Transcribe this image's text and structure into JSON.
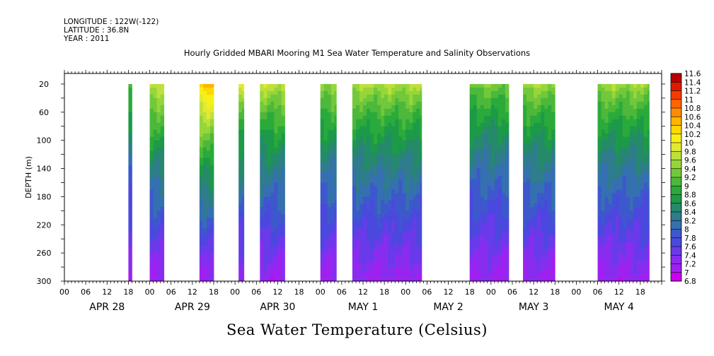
{
  "header": {
    "longitude": "LONGITUDE : 122W(-122)",
    "latitude": "LATITUDE : 36.8N",
    "year": "YEAR : 2011"
  },
  "title": "Hourly Gridded MBARI Mooring M1 Sea Water Temperature and Salinity Observations",
  "variable_label": "Sea Water Temperature (Celsius)",
  "chart_data": {
    "type": "heatmap",
    "title": "Hourly Gridded MBARI Mooring M1 Sea Water Temperature and Salinity Observations",
    "xlabel": "",
    "ylabel": "DEPTH (m)",
    "colorbar_label": "Sea Water Temperature (Celsius)",
    "x_unit": "hours since Apr 28 2011 00:00",
    "xlim": [
      0,
      168
    ],
    "ylim": [
      300,
      5
    ],
    "y_ticks": [
      20,
      60,
      100,
      140,
      180,
      220,
      260,
      300
    ],
    "x_hour_ticks": [
      "00",
      "06",
      "12",
      "18",
      "00",
      "06",
      "12",
      "18",
      "00",
      "06",
      "12",
      "18",
      "00",
      "06",
      "12",
      "18",
      "00",
      "06",
      "12",
      "18",
      "00",
      "06",
      "12",
      "18",
      "00",
      "06",
      "12",
      "18"
    ],
    "day_labels": [
      "APR 28",
      "APR 29",
      "APR 30",
      "MAY  1",
      "MAY  2",
      "MAY  3",
      "MAY  4"
    ],
    "colorbar": {
      "levels": [
        "6.8",
        "7",
        "7.2",
        "7.4",
        "7.6",
        "7.8",
        "8",
        "8.2",
        "8.4",
        "8.6",
        "8.8",
        "9",
        "9.2",
        "9.4",
        "9.6",
        "9.8",
        "10",
        "10.2",
        "10.4",
        "10.6",
        "10.8",
        "11",
        "11.2",
        "11.4",
        "11.6"
      ],
      "colors": [
        "#cc00ee",
        "#a020f0",
        "#8a2cf0",
        "#6a3aea",
        "#4b48de",
        "#3d58cc",
        "#3570b0",
        "#2e7c8c",
        "#248a6a",
        "#1d9a48",
        "#2aaa3a",
        "#4db83a",
        "#72c83a",
        "#96d63a",
        "#bee03a",
        "#e2ea30",
        "#f6f018",
        "#ffd800",
        "#ffb400",
        "#ff8c00",
        "#ff6400",
        "#f43c00",
        "#de1a00",
        "#b80000"
      ]
    },
    "data_segments": [
      {
        "start_hour": 18,
        "end_hour": 19,
        "surface_temp": 9.2
      },
      {
        "start_hour": 24,
        "end_hour": 28,
        "surface_temp": 9.9
      },
      {
        "start_hour": 38,
        "end_hour": 42,
        "surface_temp": 10.6
      },
      {
        "start_hour": 49,
        "end_hour": 50.5,
        "surface_temp": 9.9
      },
      {
        "start_hour": 55,
        "end_hour": 62,
        "surface_temp": 9.8
      },
      {
        "start_hour": 72,
        "end_hour": 76.5,
        "surface_temp": 9.6
      },
      {
        "start_hour": 81,
        "end_hour": 100.5,
        "surface_temp": 9.7
      },
      {
        "start_hour": 114,
        "end_hour": 125,
        "surface_temp": 9.4
      },
      {
        "start_hour": 129,
        "end_hour": 138,
        "surface_temp": 9.6
      },
      {
        "start_hour": 150,
        "end_hour": 164.5,
        "surface_temp": 9.6
      }
    ]
  }
}
